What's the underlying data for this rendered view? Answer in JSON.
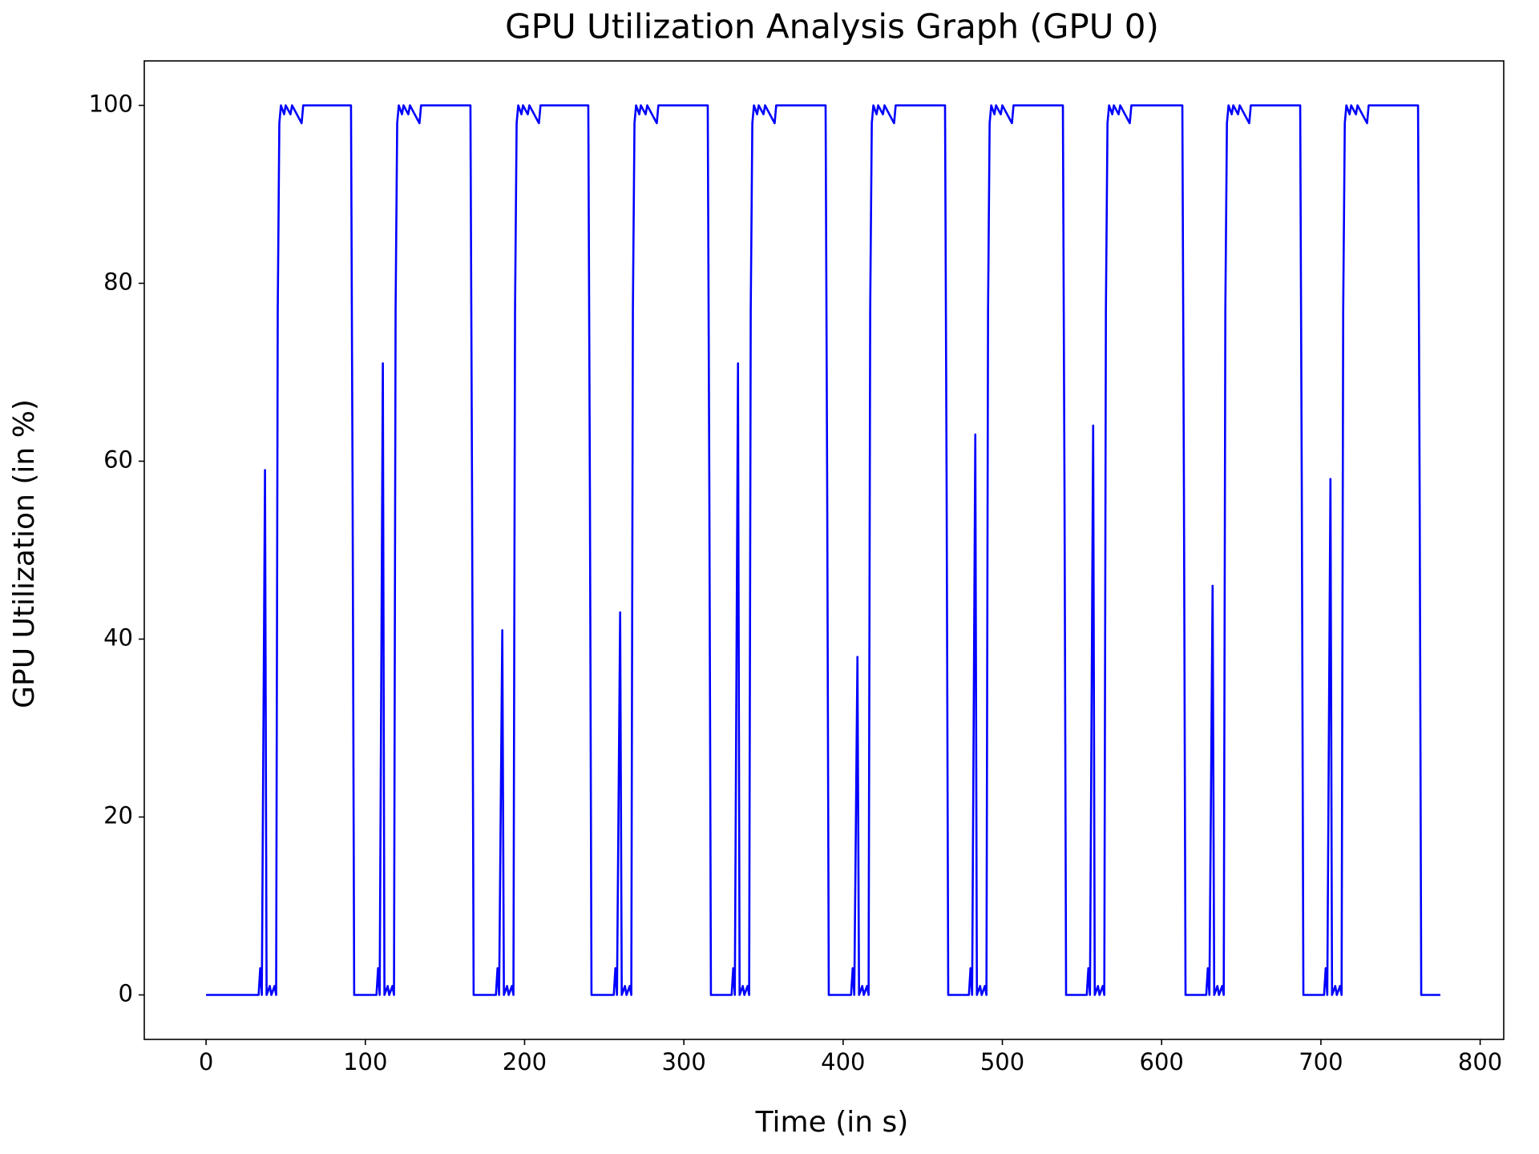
{
  "chart_data": {
    "type": "line",
    "title": "GPU Utilization Analysis Graph (GPU 0)",
    "xlabel": "Time (in s)",
    "ylabel": "GPU Utilization (in %)",
    "xlim": [
      -38.8,
      814.8
    ],
    "ylim": [
      -5,
      105
    ],
    "xticks": [
      0,
      100,
      200,
      300,
      400,
      500,
      600,
      700,
      800
    ],
    "yticks": [
      0,
      20,
      40,
      60,
      80,
      100
    ],
    "x": [
      0,
      33,
      34,
      35,
      37,
      38,
      40,
      41,
      43,
      44,
      45,
      46,
      47,
      49,
      50,
      53,
      54,
      60,
      61,
      91,
      92,
      93,
      107,
      108,
      109,
      111,
      112,
      114,
      115,
      117,
      118,
      119,
      120,
      121,
      123,
      124,
      127,
      128,
      134,
      135,
      166,
      167,
      168,
      182,
      183,
      184,
      186,
      187,
      189,
      190,
      192,
      193,
      194,
      195,
      196,
      198,
      199,
      202,
      203,
      209,
      210,
      240,
      241,
      242,
      256,
      257,
      258,
      260,
      261,
      263,
      264,
      266,
      267,
      268,
      269,
      270,
      272,
      273,
      276,
      277,
      283,
      284,
      315,
      316,
      317,
      330,
      331,
      332,
      334,
      335,
      337,
      338,
      340,
      341,
      342,
      343,
      344,
      346,
      347,
      350,
      351,
      357,
      358,
      389,
      390,
      391,
      405,
      406,
      407,
      409,
      410,
      412,
      413,
      415,
      416,
      417,
      418,
      419,
      421,
      422,
      425,
      426,
      432,
      433,
      464,
      465,
      466,
      479,
      480,
      481,
      483,
      484,
      486,
      487,
      489,
      490,
      491,
      492,
      493,
      495,
      496,
      499,
      500,
      506,
      507,
      538,
      539,
      540,
      553,
      554,
      555,
      557,
      558,
      560,
      561,
      563,
      564,
      565,
      566,
      567,
      569,
      570,
      573,
      574,
      580,
      581,
      613,
      614,
      615,
      628,
      629,
      630,
      632,
      633,
      635,
      636,
      638,
      639,
      640,
      641,
      642,
      644,
      645,
      648,
      649,
      655,
      656,
      687,
      688,
      689,
      702,
      703,
      704,
      706,
      707,
      709,
      710,
      712,
      713,
      714,
      715,
      716,
      718,
      719,
      722,
      723,
      729,
      730,
      761,
      762,
      763,
      775
    ],
    "series": [
      {
        "color": "#0000ff",
        "values": [
          0,
          0,
          3,
          0,
          59,
          0,
          1,
          0,
          1,
          0,
          77,
          98,
          100,
          99,
          100,
          99,
          100,
          98,
          100,
          100,
          57,
          0,
          0,
          3,
          0,
          71,
          0,
          1,
          0,
          1,
          0,
          77,
          98,
          100,
          99,
          100,
          99,
          100,
          98,
          100,
          100,
          57,
          0,
          0,
          3,
          0,
          41,
          0,
          1,
          0,
          1,
          0,
          77,
          98,
          100,
          99,
          100,
          99,
          100,
          98,
          100,
          100,
          57,
          0,
          0,
          3,
          0,
          43,
          0,
          1,
          0,
          1,
          0,
          77,
          98,
          100,
          99,
          100,
          99,
          100,
          98,
          100,
          100,
          57,
          0,
          0,
          3,
          0,
          71,
          0,
          1,
          0,
          1,
          0,
          77,
          98,
          100,
          99,
          100,
          99,
          100,
          98,
          100,
          100,
          57,
          0,
          0,
          3,
          0,
          38,
          0,
          1,
          0,
          1,
          0,
          77,
          98,
          100,
          99,
          100,
          99,
          100,
          98,
          100,
          100,
          57,
          0,
          0,
          3,
          0,
          63,
          0,
          1,
          0,
          1,
          0,
          77,
          98,
          100,
          99,
          100,
          99,
          100,
          98,
          100,
          100,
          57,
          0,
          0,
          3,
          0,
          64,
          0,
          1,
          0,
          1,
          0,
          77,
          98,
          100,
          99,
          100,
          99,
          100,
          98,
          100,
          100,
          57,
          0,
          0,
          3,
          0,
          46,
          0,
          1,
          0,
          1,
          0,
          77,
          98,
          100,
          99,
          100,
          99,
          100,
          98,
          100,
          100,
          57,
          0,
          0,
          3,
          0,
          58,
          0,
          1,
          0,
          1,
          0,
          77,
          98,
          100,
          99,
          100,
          99,
          100,
          98,
          100,
          100,
          57,
          0,
          0
        ]
      }
    ]
  }
}
